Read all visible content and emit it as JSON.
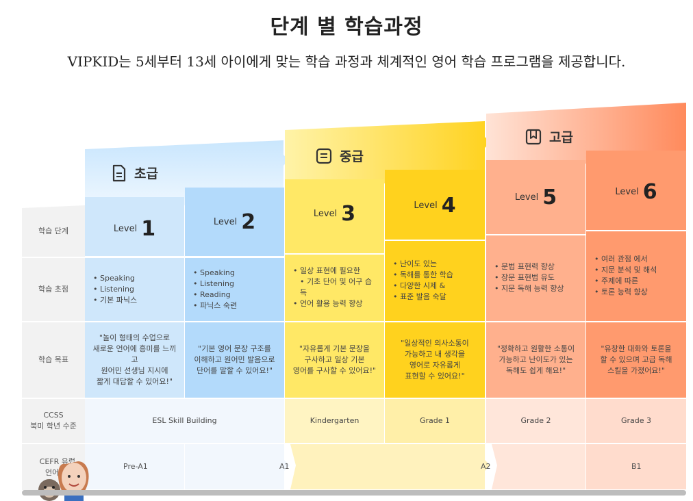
{
  "header": {
    "title": "단계 별 학습과정",
    "subtitle": "VIPKID는 5세부터 13세 아이에게 맞는 학습 과정과 체계적인 영어 학습 프로그램을 제공합니다."
  },
  "tiers": {
    "beginner": "초급",
    "intermediate": "중급",
    "advanced": "고급"
  },
  "row_labels": {
    "stage": "학습 단계",
    "focus": "학습 초점",
    "goal": "학습 목표",
    "ccss_line1": "CCSS",
    "ccss_line2": "북미 학년 수준",
    "cefr_line1": "CEFR 유럽",
    "cefr_line2": "언어 공통"
  },
  "level_word": "Level",
  "levels": [
    {
      "num": "1",
      "focus": [
        "Speaking",
        "Listening",
        "기본 파닉스"
      ],
      "goal": [
        "\"놀이 형태의 수업으로",
        "새로운 언어에 흥미를 느끼고",
        "원어민 선생님 지시에",
        "짧게 대답할 수 있어요!\""
      ]
    },
    {
      "num": "2",
      "focus": [
        "Speaking",
        "Listening",
        "Reading",
        "파닉스 숙련"
      ],
      "goal": [
        "\"기본 영어 문장 구조를",
        "이해하고 원어민 발음으로",
        "단어를 말할 수 있어요!\""
      ]
    },
    {
      "num": "3",
      "focus": [
        "일상 표현에 필요한",
        "기초 단어 및 어구 습득",
        "언어 활용 능력 향상"
      ],
      "goal": [
        "\"자유롭게 기본 문장을",
        "구사하고 일상 기본",
        "영어를 구사할 수 있어요!\""
      ]
    },
    {
      "num": "4",
      "focus": [
        "난이도 있는",
        "독해를 통한 학습",
        "다양한 시제 &",
        "표준 발음 숙달"
      ],
      "goal": [
        "\"일상적인 의사소통이",
        "가능하고 내 생각을",
        "영어로 자유롭게",
        "표현할 수 있어요!\""
      ]
    },
    {
      "num": "5",
      "focus": [
        "문법 표현력 향상",
        "장문 표현법 유도",
        "지문 독해 능력 향상"
      ],
      "goal": [
        "\"정확하고 원활한 소통이",
        "가능하고 난이도가 있는",
        "독해도 쉽게 해요!\""
      ]
    },
    {
      "num": "6",
      "focus": [
        "여러 관점 에서",
        "지문 분석 및 해석",
        "주제에 따른",
        "토론 능력 향상"
      ],
      "goal": [
        "\"유창한 대화와 토론을",
        "할 수 있으며 고급 독해",
        "스킬을 가졌어요!\""
      ]
    }
  ],
  "ccss": {
    "esl": "ESL Skill Building",
    "k": "Kindergarten",
    "g1": "Grade 1",
    "g2": "Grade 2",
    "g3": "Grade 3"
  },
  "cefr": {
    "prea1": "Pre-A1",
    "a1": "A1",
    "a2": "A2",
    "b1": "B1"
  },
  "colors": {
    "blue": "#b3dafb",
    "yellow": "#ffd84a",
    "orange": "#ff9a6e"
  }
}
